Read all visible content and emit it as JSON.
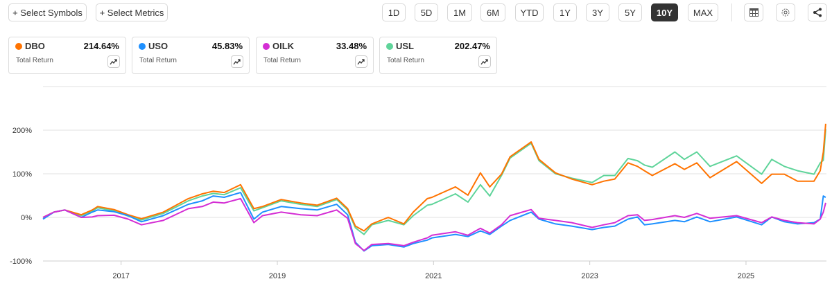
{
  "toolbar": {
    "select_symbols": "+ Select Symbols",
    "select_metrics": "+ Select Metrics",
    "ranges": [
      "1D",
      "5D",
      "1M",
      "6M",
      "YTD",
      "1Y",
      "3Y",
      "5Y",
      "10Y",
      "MAX"
    ],
    "active_range": "10Y",
    "icons": [
      "table-icon",
      "gear-icon",
      "share-icon"
    ]
  },
  "cards": [
    {
      "symbol": "DBO",
      "value": "214.64%",
      "label": "Total Return",
      "color": "#ff7300"
    },
    {
      "symbol": "USO",
      "value": "45.83%",
      "label": "Total Return",
      "color": "#1e90ff"
    },
    {
      "symbol": "OILK",
      "value": "33.48%",
      "label": "Total Return",
      "color": "#d42ed4"
    },
    {
      "symbol": "USL",
      "value": "202.47%",
      "label": "Total Return",
      "color": "#5fd49a"
    }
  ],
  "chart_data": {
    "type": "line",
    "xlabel": "",
    "ylabel": "",
    "x_ticks": [
      "2017",
      "2019",
      "2021",
      "2023",
      "2025"
    ],
    "y_ticks": [
      "200%",
      "100%",
      "0%",
      "-100%"
    ],
    "ylim": [
      -100,
      300
    ],
    "xlim": [
      2016.0,
      2026.03
    ],
    "grid": true,
    "x": [
      2016.0,
      2016.14,
      2016.28,
      2016.49,
      2016.63,
      2016.7,
      2016.91,
      2017.09,
      2017.26,
      2017.54,
      2017.86,
      2018.04,
      2018.18,
      2018.32,
      2018.53,
      2018.7,
      2018.81,
      2019.05,
      2019.3,
      2019.51,
      2019.76,
      2019.9,
      2020.0,
      2020.11,
      2020.21,
      2020.42,
      2020.62,
      2020.74,
      2020.92,
      2020.98,
      2021.28,
      2021.44,
      2021.6,
      2021.72,
      2021.87,
      2021.98,
      2022.25,
      2022.35,
      2022.56,
      2022.77,
      2023.03,
      2023.18,
      2023.32,
      2023.49,
      2023.61,
      2023.7,
      2023.8,
      2024.09,
      2024.21,
      2024.37,
      2024.54,
      2024.88,
      2025.2,
      2025.33,
      2025.49,
      2025.66,
      2025.87,
      2025.95,
      2025.99,
      2026.02
    ],
    "series": [
      {
        "name": "USL",
        "color": "#5fd49a",
        "values": [
          0,
          12,
          17,
          4,
          15,
          22,
          15,
          3,
          -6,
          9,
          38,
          49,
          55,
          52,
          68,
          15,
          22,
          38,
          30,
          25,
          41,
          17,
          -24,
          -39,
          -17,
          -7,
          -17,
          4,
          28,
          30,
          54,
          35,
          75,
          49,
          96,
          136,
          170,
          130,
          100,
          90,
          80,
          96,
          96,
          135,
          130,
          120,
          115,
          150,
          133,
          150,
          117,
          141,
          99,
          133,
          117,
          107,
          99,
          125,
          131,
          202.47
        ]
      },
      {
        "name": "DBO",
        "color": "#ff7300",
        "values": [
          0,
          12,
          17,
          6,
          17,
          25,
          18,
          6,
          -3,
          12,
          43,
          54,
          60,
          57,
          75,
          20,
          25,
          41,
          33,
          28,
          44,
          20,
          -20,
          -31,
          -15,
          0,
          -15,
          12,
          43,
          46,
          70,
          51,
          102,
          70,
          99,
          139,
          173,
          133,
          102,
          88,
          75,
          83,
          88,
          125,
          117,
          107,
          96,
          123,
          110,
          125,
          91,
          128,
          78,
          99,
          99,
          83,
          83,
          107,
          150,
          214.64
        ]
      },
      {
        "name": "USO",
        "color": "#1e90ff",
        "values": [
          -4,
          12,
          17,
          0,
          12,
          17,
          13,
          4,
          -10,
          4,
          30,
          38,
          49,
          46,
          57,
          -4,
          12,
          25,
          20,
          17,
          30,
          6,
          -57,
          -77,
          -65,
          -62,
          -68,
          -60,
          -52,
          -47,
          -39,
          -44,
          -31,
          -39,
          -20,
          -7,
          12,
          -4,
          -15,
          -20,
          -28,
          -23,
          -20,
          -4,
          1,
          -17,
          -15,
          -7,
          -10,
          1,
          -10,
          1,
          -17,
          1,
          -10,
          -15,
          -12,
          -4,
          49,
          45.83
        ]
      },
      {
        "name": "OILK",
        "color": "#d42ed4",
        "values": [
          0,
          12,
          17,
          0,
          1,
          4,
          5,
          -4,
          -17,
          -7,
          20,
          25,
          35,
          33,
          43,
          -12,
          4,
          12,
          6,
          4,
          17,
          -2,
          -60,
          -76,
          -62,
          -60,
          -65,
          -57,
          -47,
          -41,
          -33,
          -41,
          -25,
          -36,
          -17,
          4,
          18,
          -2,
          -7,
          -12,
          -23,
          -17,
          -12,
          4,
          6,
          -7,
          -5,
          4,
          0,
          9,
          -2,
          4,
          -12,
          1,
          -7,
          -12,
          -15,
          -4,
          12,
          33.48
        ]
      }
    ]
  }
}
